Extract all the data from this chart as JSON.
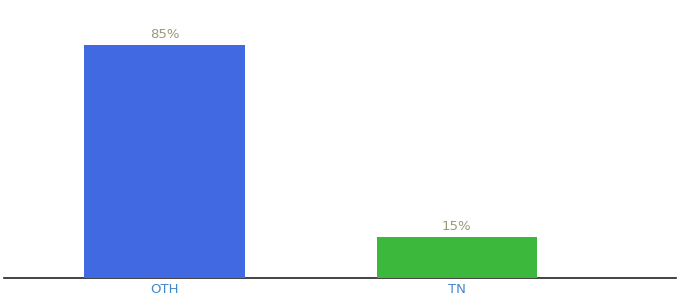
{
  "categories": [
    "OTH",
    "TN"
  ],
  "values": [
    85,
    15
  ],
  "bar_colors": [
    "#4169E1",
    "#3CB83C"
  ],
  "label_texts": [
    "85%",
    "15%"
  ],
  "label_color": "#999977",
  "xlabel": "",
  "ylabel": "",
  "ylim": [
    0,
    100
  ],
  "background_color": "#ffffff",
  "bar_width": 0.55,
  "label_fontsize": 9.5,
  "tick_fontsize": 9.5,
  "tick_color": "#4488cc"
}
